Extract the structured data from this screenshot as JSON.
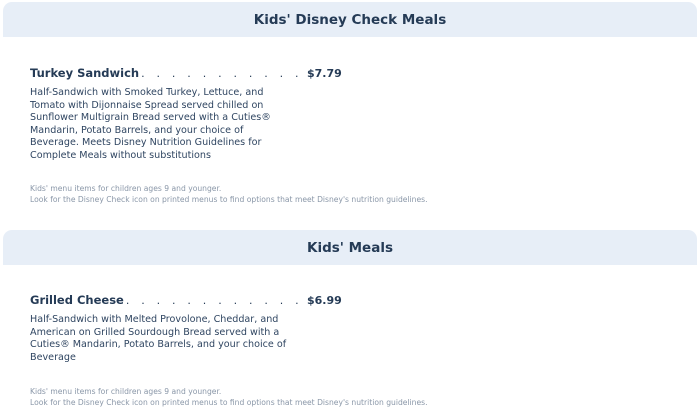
{
  "sections": [
    {
      "title": "Kids' Disney Check Meals",
      "item": {
        "name": "Turkey Sandwich",
        "price": "$7.79",
        "description": "Half-Sandwich with Smoked Turkey, Lettuce, and Tomato with Dijonnaise Spread served chilled on Sunflower Multigrain Bread served with a Cuties® Mandarin, Potato Barrels, and your choice of Beverage. Meets Disney Nutrition Guidelines for Complete Meals without substitutions"
      },
      "notes": [
        "Kids' menu items for children ages 9 and younger.",
        "Look for the Disney Check icon on printed menus to find options that meet Disney's nutrition guidelines."
      ]
    },
    {
      "title": "Kids' Meals",
      "item": {
        "name": "Grilled Cheese",
        "price": "$6.99",
        "description": "Half-Sandwich with Melted Provolone, Cheddar, and American on Grilled Sourdough Bread served with a Cuties® Mandarin, Potato Barrels, and your choice of Beverage"
      },
      "notes": [
        "Kids' menu items for children ages 9 and younger.",
        "Look for the Disney Check icon on printed menus to find options that meet Disney's nutrition guidelines."
      ]
    }
  ],
  "colors": {
    "header_bg": "#e7eef7",
    "text": "#253b56",
    "note": "#8a97a8"
  }
}
